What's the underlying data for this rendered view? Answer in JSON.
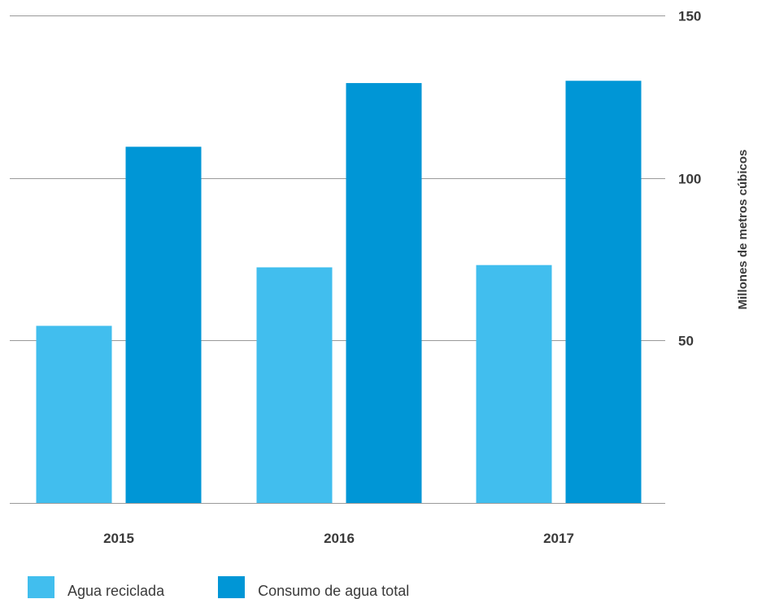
{
  "chart_data": {
    "type": "bar",
    "title": "",
    "xlabel": "",
    "ylabel": "Millones de metros cúbicos",
    "categories": [
      "2015",
      "2016",
      "2017"
    ],
    "series": [
      {
        "name": "Agua reciclada",
        "color": "#41BEEE",
        "values": [
          54.5,
          72.5,
          73.2
        ]
      },
      {
        "name": "Consumo de agua total",
        "color": "#0096D6",
        "values": [
          109.6,
          129.2,
          129.9
        ]
      }
    ],
    "ylim": [
      0,
      150
    ],
    "yticks": [
      50,
      100,
      150
    ],
    "y_axis_side": "right",
    "grid": true,
    "legend_position": "bottom-left"
  }
}
